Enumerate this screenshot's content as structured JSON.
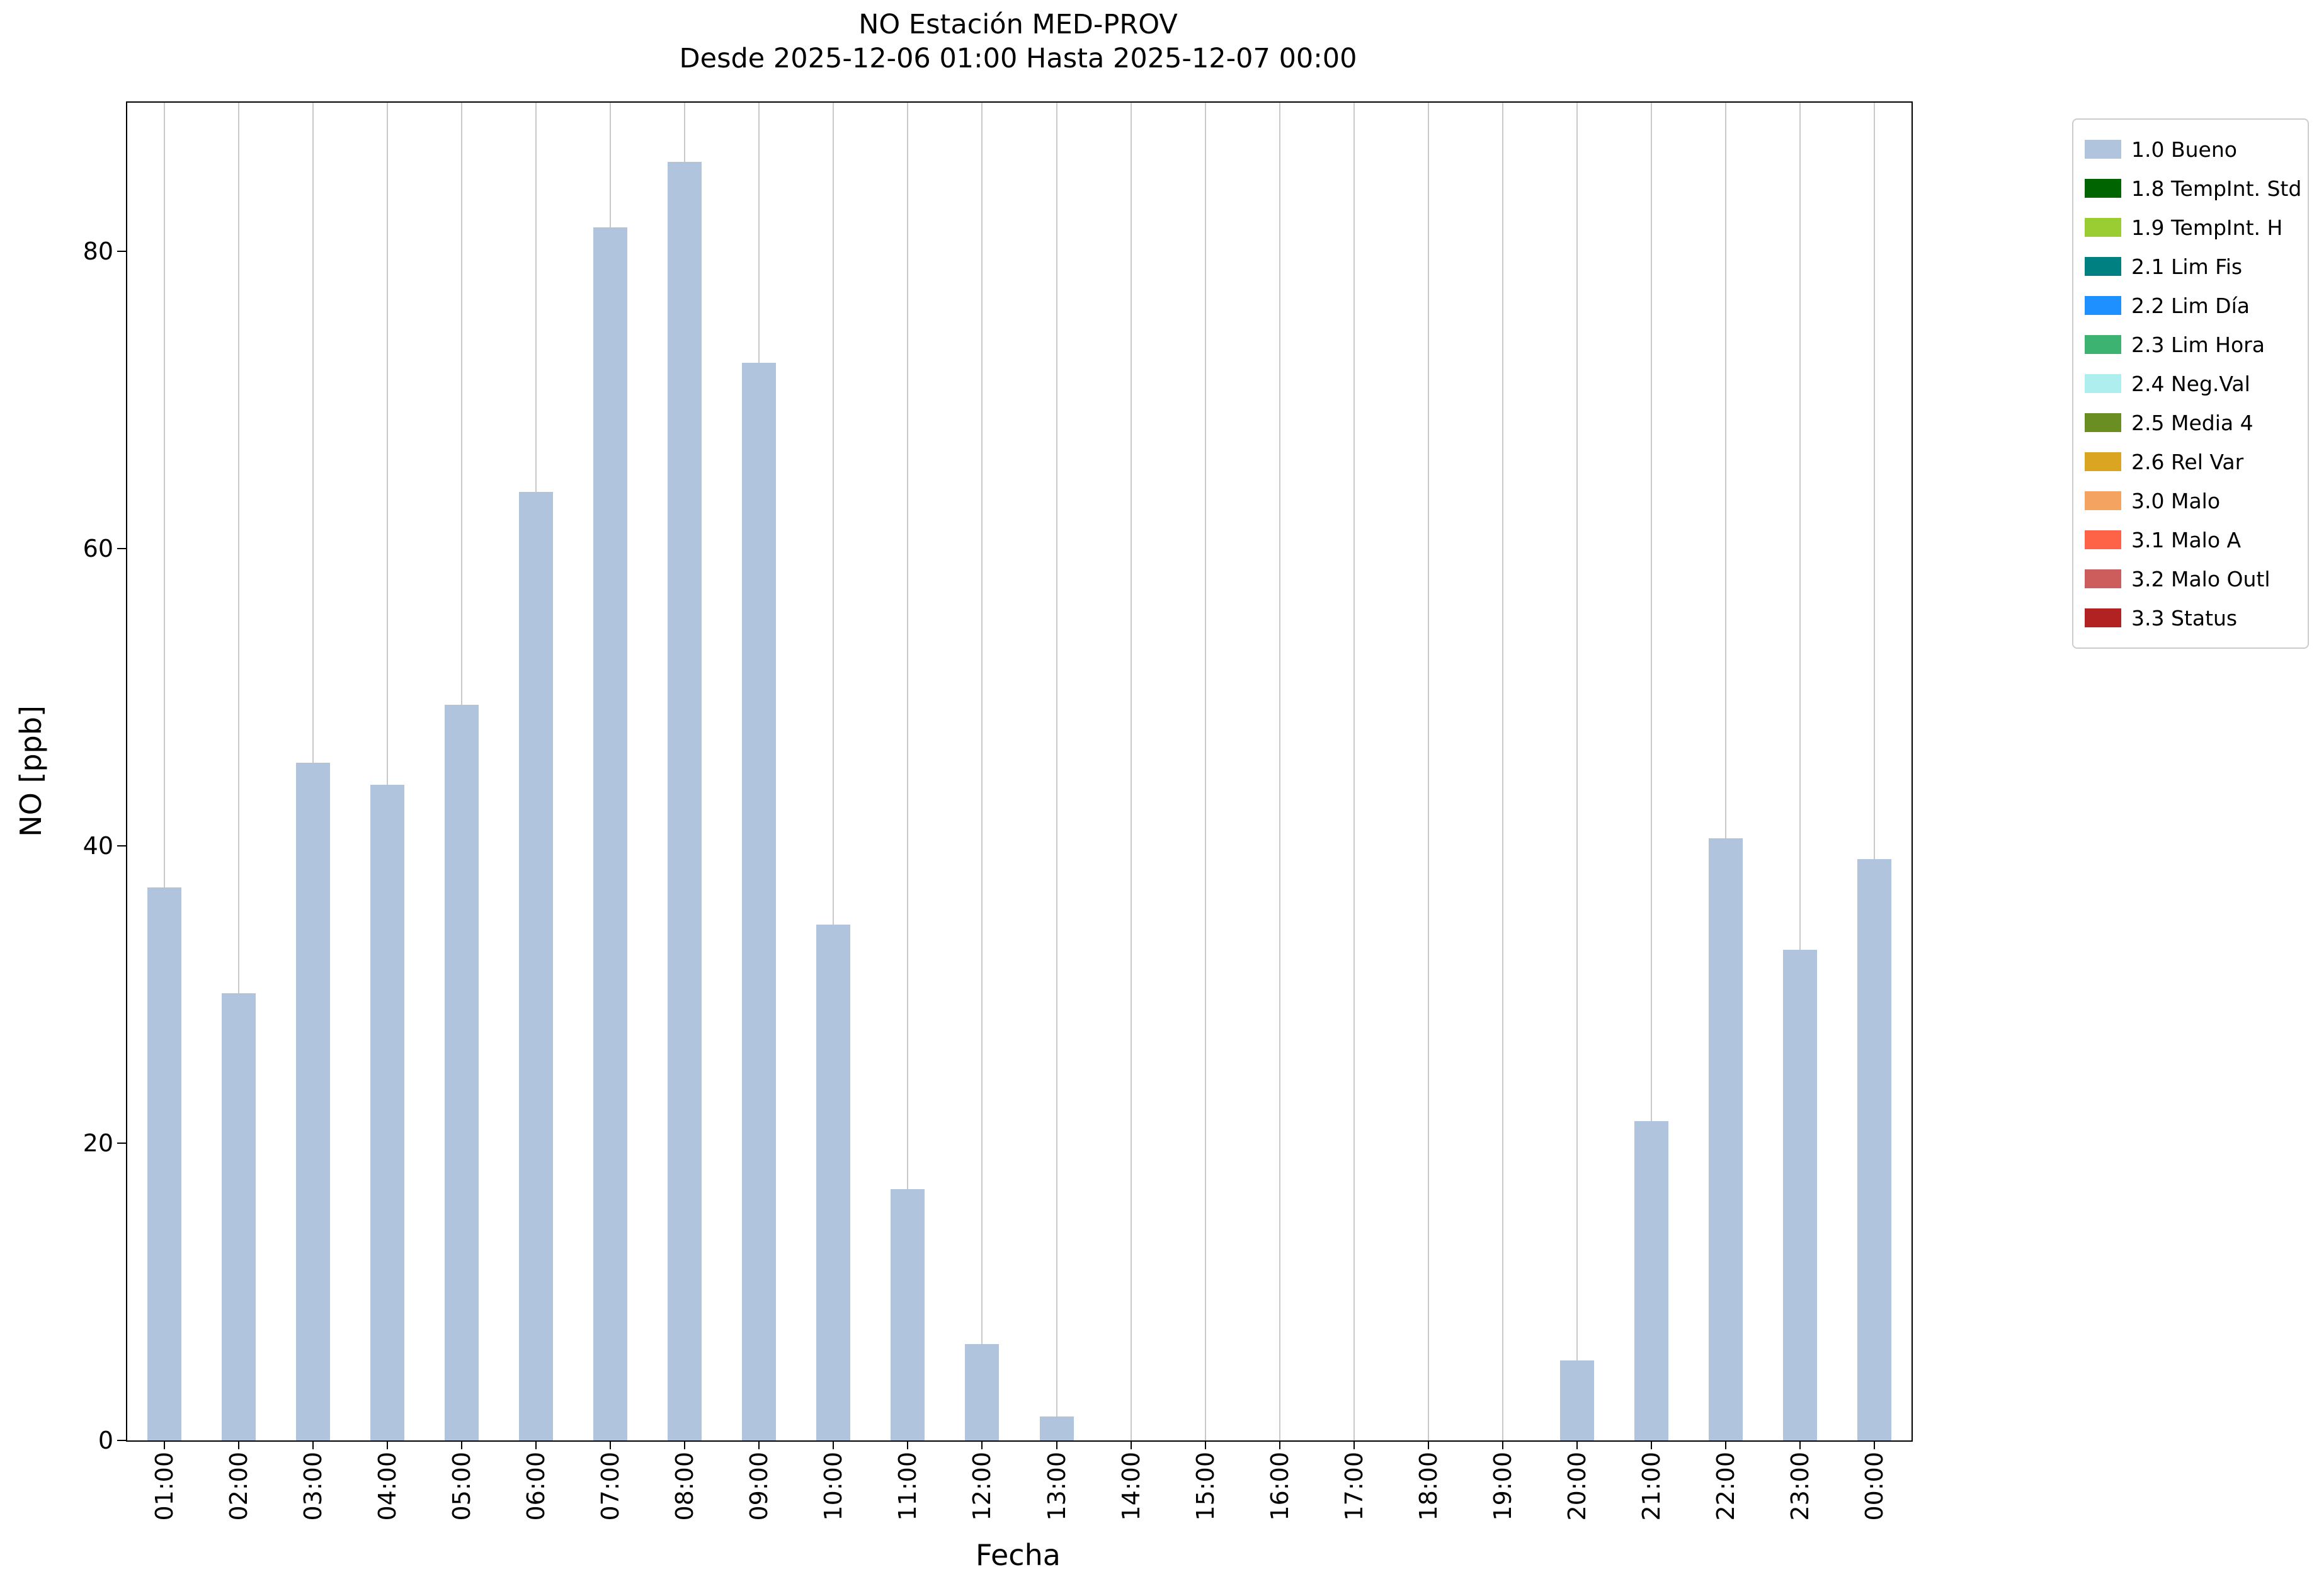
{
  "chart_data": {
    "type": "bar",
    "title": "NO Estación MED-PROV",
    "subtitle": "Desde 2025-12-06 01:00 Hasta 2025-12-07 00:00",
    "xlabel": "Fecha",
    "ylabel": "NO [ppb]",
    "ylim": [
      0,
      90
    ],
    "yticks": [
      0,
      20,
      40,
      60,
      80
    ],
    "grid": "vertical",
    "legend_position": "outside-right",
    "bar_color": "#b0c4de",
    "categories": [
      "01:00",
      "02:00",
      "03:00",
      "04:00",
      "05:00",
      "06:00",
      "07:00",
      "08:00",
      "09:00",
      "10:00",
      "11:00",
      "12:00",
      "13:00",
      "14:00",
      "15:00",
      "16:00",
      "17:00",
      "18:00",
      "19:00",
      "20:00",
      "21:00",
      "22:00",
      "23:00",
      "00:00"
    ],
    "values": [
      37.2,
      30.1,
      45.6,
      44.1,
      49.5,
      63.8,
      81.6,
      86.0,
      72.5,
      34.7,
      16.9,
      6.5,
      1.6,
      0,
      0,
      0,
      0,
      0,
      0,
      5.4,
      21.5,
      40.5,
      33.0,
      39.1
    ],
    "series_name": "1.0 Bueno",
    "legend": [
      {
        "label": "1.0 Bueno",
        "color": "#b0c4de"
      },
      {
        "label": "1.8 TempInt. Std",
        "color": "#006400"
      },
      {
        "label": "1.9 TempInt. H",
        "color": "#9acd32"
      },
      {
        "label": "2.1 Lim Fis",
        "color": "#008080"
      },
      {
        "label": "2.2 Lim Día",
        "color": "#1e90ff"
      },
      {
        "label": "2.3 Lim Hora",
        "color": "#3cb371"
      },
      {
        "label": "2.4 Neg.Val",
        "color": "#afeeee"
      },
      {
        "label": "2.5 Media 4",
        "color": "#6b8e23"
      },
      {
        "label": "2.6 Rel Var",
        "color": "#daa520"
      },
      {
        "label": "3.0 Malo",
        "color": "#f4a460"
      },
      {
        "label": "3.1 Malo A",
        "color": "#ff6347"
      },
      {
        "label": "3.2 Malo Outl",
        "color": "#cd5c5c"
      },
      {
        "label": "3.3 Status",
        "color": "#b22222"
      }
    ]
  }
}
